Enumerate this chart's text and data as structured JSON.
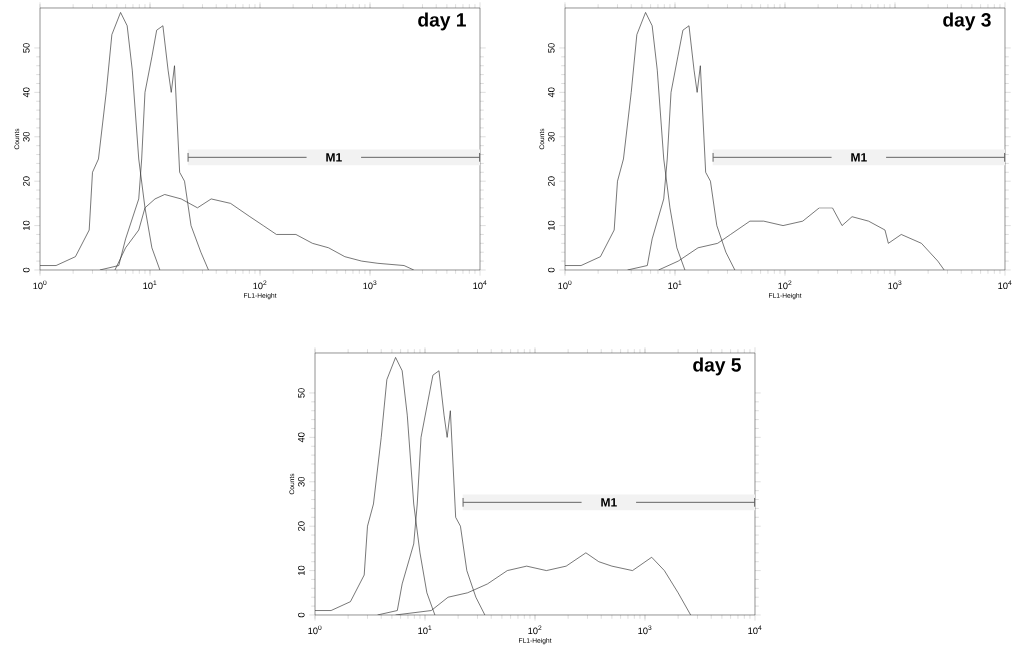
{
  "chart_data": [
    {
      "type": "line",
      "title": "day 1",
      "xlabel": "FL1-Height",
      "ylabel": "Counts",
      "log": "x",
      "xlim": [
        1,
        10000
      ],
      "ylim": [
        0,
        59
      ],
      "xticks": [
        {
          "value": 1,
          "label": "10$^{0}$"
        },
        {
          "value": 10,
          "label": "10$^{1}$"
        },
        {
          "value": 100,
          "label": "10$^{2}$"
        },
        {
          "value": 1000,
          "label": "10$^{3}$"
        },
        {
          "value": 10000,
          "label": "10$^{4}$"
        }
      ],
      "yticks": [
        0,
        10,
        20,
        30,
        40,
        50
      ],
      "marker": "none",
      "line_style": "solid",
      "series": [
        {
          "color": "#333333",
          "x": [
            1.0,
            1.4,
            2.1,
            2.8,
            3.0,
            3.4,
            4.0,
            4.5,
            5.4,
            6.2,
            6.9,
            7.9,
            9.0,
            10.4,
            12.3
          ],
          "values": [
            1,
            1,
            3,
            9,
            22,
            25,
            40,
            53,
            58,
            55,
            45,
            25,
            14,
            5,
            0
          ]
        },
        {
          "color": "#333333",
          "x": [
            3.5,
            5.2,
            6.0,
            7.9,
            8.4,
            9.0,
            10.4,
            11.5,
            13.1,
            14.6,
            15.6,
            16.7,
            18.6,
            20.6,
            23.6,
            29,
            34
          ],
          "values": [
            0,
            1,
            7,
            16,
            25,
            40,
            48,
            54,
            55,
            45,
            40,
            46,
            22,
            20,
            10,
            4,
            0
          ]
        },
        {
          "color": "#333333",
          "x": [
            4.8,
            6.0,
            7.9,
            9.0,
            11.1,
            13.6,
            19.2,
            27,
            36,
            54,
            81,
            107,
            141,
            212,
            300,
            420,
            590,
            840,
            1180,
            2040,
            2500
          ],
          "values": [
            0,
            5,
            9,
            14,
            16,
            17,
            16,
            14,
            16,
            15,
            12,
            10,
            8,
            8,
            6,
            5,
            3,
            2,
            1.5,
            1,
            0
          ]
        }
      ],
      "bands": [
        {
          "axis": "x",
          "from": 22,
          "to": 10000,
          "label": "M1"
        }
      ]
    },
    {
      "type": "line",
      "title": "day 3",
      "xlabel": "FL1-Height",
      "ylabel": "Counts",
      "log": "x",
      "xlim": [
        1,
        10000
      ],
      "ylim": [
        0,
        59
      ],
      "xticks": [
        {
          "value": 1,
          "label": "10$^{0}$"
        },
        {
          "value": 10,
          "label": "10$^{1}$"
        },
        {
          "value": 100,
          "label": "10$^{2}$"
        },
        {
          "value": 1000,
          "label": "10$^{3}$"
        },
        {
          "value": 10000,
          "label": "10$^{4}$"
        }
      ],
      "yticks": [
        0,
        10,
        20,
        30,
        40,
        50
      ],
      "marker": "none",
      "line_style": "solid",
      "series": [
        {
          "color": "#333333",
          "x": [
            1.0,
            1.4,
            2.1,
            2.8,
            3.0,
            3.4,
            4.0,
            4.5,
            5.4,
            6.2,
            6.9,
            7.9,
            9.0,
            10.4,
            12.3
          ],
          "values": [
            1,
            1,
            3,
            9,
            20,
            25,
            40,
            53,
            58,
            55,
            45,
            25,
            14,
            5,
            0
          ]
        },
        {
          "color": "#333333",
          "x": [
            3.7,
            5.6,
            6.2,
            7.9,
            8.5,
            9.2,
            10.6,
            11.8,
            13.4,
            14.9,
            15.9,
            17.0,
            19.0,
            21.0,
            24.0,
            29,
            35
          ],
          "values": [
            0,
            1,
            7,
            16,
            25,
            40,
            48,
            54,
            55,
            45,
            40,
            46,
            22,
            20,
            10,
            4,
            0
          ]
        },
        {
          "color": "#333333",
          "x": [
            7.1,
            10.7,
            16.2,
            24.4,
            32,
            48,
            64,
            96,
            145,
            205,
            270,
            330,
            407,
            575,
            811,
            870,
            1140,
            1740,
            2450,
            2800
          ],
          "values": [
            0,
            2,
            5,
            6,
            8,
            11,
            11,
            10,
            11,
            14,
            14,
            10,
            12,
            11,
            9,
            6,
            8,
            6,
            2,
            0
          ]
        }
      ],
      "bands": [
        {
          "axis": "x",
          "from": 22,
          "to": 10000,
          "label": "M1"
        }
      ]
    },
    {
      "type": "line",
      "title": "day 5",
      "xlabel": "FL1-Height",
      "ylabel": "Counts",
      "log": "x",
      "xlim": [
        1,
        10000
      ],
      "ylim": [
        0,
        59
      ],
      "xticks": [
        {
          "value": 1,
          "label": "10$^{0}$"
        },
        {
          "value": 10,
          "label": "10$^{1}$"
        },
        {
          "value": 100,
          "label": "10$^{2}$"
        },
        {
          "value": 1000,
          "label": "10$^{3}$"
        },
        {
          "value": 10000,
          "label": "10$^{4}$"
        }
      ],
      "yticks": [
        0,
        10,
        20,
        30,
        40,
        50
      ],
      "marker": "none",
      "line_style": "solid",
      "series": [
        {
          "color": "#333333",
          "x": [
            1.0,
            1.4,
            2.1,
            2.8,
            3.0,
            3.4,
            4.0,
            4.5,
            5.4,
            6.2,
            6.9,
            7.9,
            9.0,
            10.4,
            12.3
          ],
          "values": [
            1,
            1,
            3,
            9,
            20,
            25,
            40,
            53,
            58,
            55,
            45,
            25,
            14,
            5,
            0
          ]
        },
        {
          "color": "#333333",
          "x": [
            3.7,
            5.6,
            6.2,
            7.9,
            8.5,
            9.2,
            10.6,
            11.8,
            13.4,
            14.9,
            15.9,
            17.0,
            19.0,
            21.0,
            24.0,
            29,
            35
          ],
          "values": [
            0,
            1,
            7,
            16,
            25,
            40,
            48,
            54,
            55,
            45,
            40,
            46,
            22,
            20,
            10,
            4,
            0
          ]
        },
        {
          "color": "#333333",
          "x": [
            5.4,
            11.4,
            16.2,
            24.4,
            37,
            56,
            84,
            127,
            192,
            290,
            380,
            500,
            770,
            1150,
            1500,
            2000,
            2600
          ],
          "values": [
            0,
            1,
            4,
            5,
            7,
            10,
            11,
            10,
            11,
            14,
            12,
            11,
            10,
            13,
            10,
            5,
            0
          ]
        }
      ],
      "bands": [
        {
          "axis": "x",
          "from": 22,
          "to": 10000,
          "label": "M1"
        }
      ]
    }
  ]
}
